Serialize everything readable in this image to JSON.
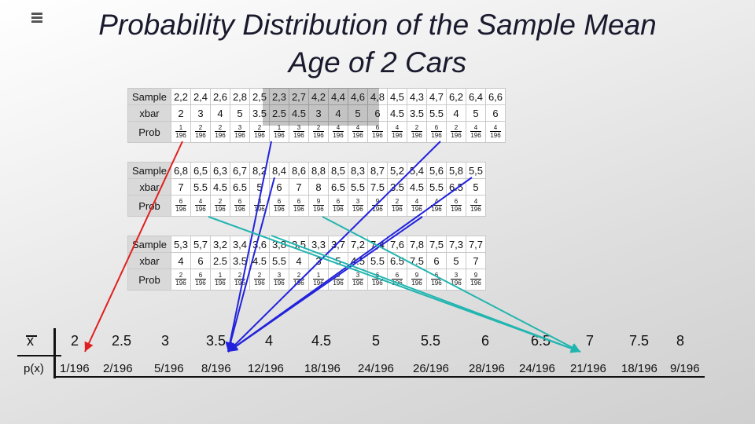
{
  "title_line1": "Probability Distribution of the Sample Mean",
  "title_line2": "Age of 2 Cars",
  "row_labels": {
    "sample": "Sample",
    "xbar": "xbar",
    "prob": "Prob"
  },
  "denominator": "196",
  "tables": [
    {
      "samples": [
        "2,2",
        "2,4",
        "2,6",
        "2,8",
        "2,5",
        "2,3",
        "2,7",
        "4,2",
        "4,4",
        "4,6",
        "4,8",
        "4,5",
        "4,3",
        "4,7",
        "6,2",
        "6,4",
        "6,6"
      ],
      "xbar": [
        "2",
        "3",
        "4",
        "5",
        "3.5",
        "2.5",
        "4.5",
        "3",
        "4",
        "5",
        "6",
        "4.5",
        "3.5",
        "5.5",
        "4",
        "5",
        "6"
      ],
      "prob": [
        "1",
        "2",
        "2",
        "3",
        "2",
        "1",
        "3",
        "2",
        "4",
        "4",
        "6",
        "4",
        "2",
        "6",
        "2",
        "4",
        "4"
      ]
    },
    {
      "samples": [
        "6,8",
        "6,5",
        "6,3",
        "6,7",
        "8,2",
        "8,4",
        "8,6",
        "8,8",
        "8,5",
        "8,3",
        "8,7",
        "5,2",
        "5,4",
        "5,6",
        "5,8",
        "5,5"
      ],
      "xbar": [
        "7",
        "5.5",
        "4.5",
        "6.5",
        "5",
        "6",
        "7",
        "8",
        "6.5",
        "5.5",
        "7.5",
        "3.5",
        "4.5",
        "5.5",
        "6.5",
        "5"
      ],
      "prob": [
        "6",
        "4",
        "2",
        "6",
        "3",
        "6",
        "6",
        "9",
        "6",
        "3",
        "9",
        "2",
        "4",
        "4",
        "6",
        "4"
      ]
    },
    {
      "samples": [
        "5,3",
        "5,7",
        "3,2",
        "3,4",
        "3,6",
        "3,8",
        "3,5",
        "3,3",
        "3,7",
        "7,2",
        "7,4",
        "7,6",
        "7,8",
        "7,5",
        "7,3",
        "7,7"
      ],
      "xbar": [
        "4",
        "6",
        "2.5",
        "3.5",
        "4.5",
        "5.5",
        "4",
        "3",
        "5",
        "4.5",
        "5.5",
        "6.5",
        "7.5",
        "6",
        "5",
        "7"
      ],
      "prob": [
        "2",
        "6",
        "1",
        "2",
        "2",
        "3",
        "2",
        "1",
        "3",
        "3",
        "6",
        "6",
        "9",
        "6",
        "3",
        "9"
      ]
    }
  ],
  "distribution": {
    "x_label": "x",
    "p_label": "p(x)",
    "x_values": [
      "2",
      "2.5",
      "3",
      "3.5",
      "4",
      "4.5",
      "5",
      "5.5",
      "6",
      "6.5",
      "7",
      "7.5",
      "8"
    ],
    "p_values": [
      "1/196",
      "2/196",
      "5/196",
      "8/196",
      "12/196",
      "18/196",
      "24/196",
      "26/196",
      "28/196",
      "24/196",
      "21/196",
      "18/196",
      "9/196"
    ]
  },
  "colors": {
    "red_arrow": "#e02020",
    "blue_arrow": "#2222dd",
    "teal_arrow": "#22b5b0"
  }
}
